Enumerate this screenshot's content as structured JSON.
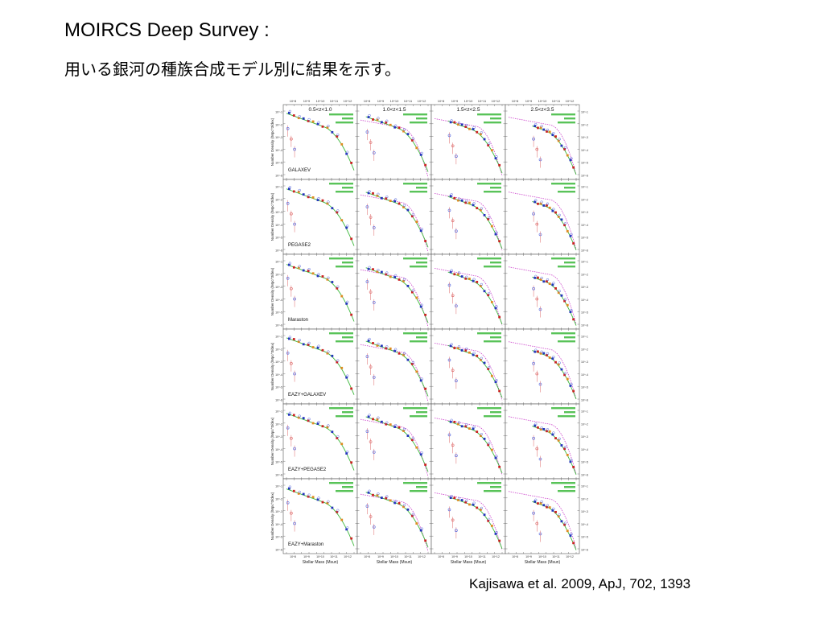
{
  "slide": {
    "title": "MOIRCS Deep Survey :",
    "subtitle": "用いる銀河の種族合成モデル別に結果を示す。",
    "citation": "Kajisawa et al. 2009, ApJ, 702, 1393"
  },
  "chart_data": {
    "type": "scatter",
    "xlabel": "Stellar Mass (Msun)",
    "ylabel": "Number Density (/Mpc^3/dex)",
    "x_scale": "log",
    "y_scale": "log",
    "x_tick_labels": [
      "10^8",
      "10^9",
      "10^10",
      "10^11",
      "10^12"
    ],
    "y_tick_labels": [
      "10^-1",
      "10^-2",
      "10^-3",
      "10^-4",
      "10^-5",
      "10^-6"
    ],
    "column_labels": [
      "0.5<z<1.0",
      "1.0<z<1.5",
      "1.5<z<2.5",
      "2.5<z<3.5"
    ],
    "row_labels": [
      "GALAXEV",
      "PEGASE2",
      "Maraston",
      "EAZY+GALAXEV",
      "EAZY+PEGASE2",
      "EAZY+Maraston"
    ],
    "colors": {
      "fit": "#3cb83c",
      "reference": "#cc44cc",
      "data_blue": "#2233bb",
      "data_red": "#cc2222",
      "data_orange": "#e08a20",
      "data_open_blue": "#5566dd",
      "data_open_red": "#dd6666"
    }
  }
}
